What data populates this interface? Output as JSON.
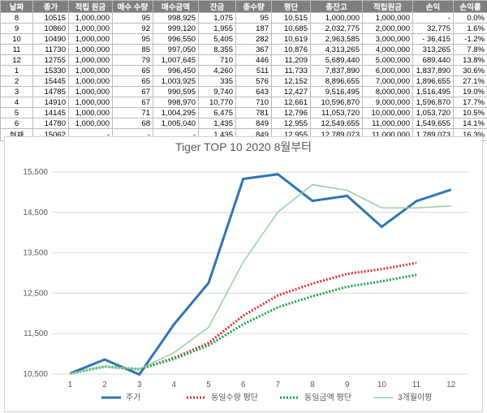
{
  "table": {
    "header": [
      "날짜",
      "종가",
      "적립 원금",
      "매수 수량",
      "매수금액",
      "잔금",
      "총수량",
      "평단",
      "총잔고",
      "적립원금",
      "손익",
      "손익률"
    ],
    "rows": [
      [
        "8",
        "10515",
        "1,000,000",
        "95",
        "998,925",
        "1,075",
        "95",
        "10,515",
        "1,000,000",
        "1,000,000",
        "-",
        "0.0%"
      ],
      [
        "9",
        "10860",
        "1,000,000",
        "92",
        "999,120",
        "1,955",
        "187",
        "10,685",
        "2,032,775",
        "2,000,000",
        "32,775",
        "1.6%"
      ],
      [
        "10",
        "10490",
        "1,000,000",
        "95",
        "996,550",
        "5,405",
        "282",
        "10,619",
        "2,963,585",
        "3,000,000",
        "- 36,415",
        "-1.2%"
      ],
      [
        "11",
        "11730",
        "1,000,000",
        "85",
        "997,050",
        "8,355",
        "367",
        "10,876",
        "4,313,265",
        "4,000,000",
        "313,265",
        "7.8%"
      ],
      [
        "12",
        "12755",
        "1,000,000",
        "79",
        "1,007,645",
        "710",
        "446",
        "11,209",
        "5,689,440",
        "5,000,000",
        "689,440",
        "13.8%"
      ],
      [
        "1",
        "15330",
        "1,000,000",
        "65",
        "996,450",
        "4,260",
        "511",
        "11,733",
        "7,837,890",
        "6,000,000",
        "1,837,890",
        "30.6%"
      ],
      [
        "2",
        "15445",
        "1,000,000",
        "65",
        "1,003,925",
        "335",
        "576",
        "12,152",
        "8,896,655",
        "7,000,000",
        "1,896,655",
        "27.1%"
      ],
      [
        "3",
        "14785",
        "1,000,000",
        "67",
        "990,595",
        "9,740",
        "643",
        "12,427",
        "9,516,495",
        "8,000,000",
        "1,516,495",
        "19.0%"
      ],
      [
        "4",
        "14910",
        "1,000,000",
        "67",
        "998,970",
        "10,770",
        "710",
        "12,661",
        "10,596,870",
        "9,000,000",
        "1,596,870",
        "17.7%"
      ],
      [
        "5",
        "14145",
        "1,000,000",
        "71",
        "1,004,295",
        "6,475",
        "781",
        "12,796",
        "11,053,720",
        "10,000,000",
        "1,053,720",
        "10.5%"
      ],
      [
        "6",
        "14780",
        "1,000,000",
        "68",
        "1,005,040",
        "1,435",
        "849",
        "12,955",
        "12,549,655",
        "11,000,000",
        "1,549,655",
        "14.1%"
      ],
      [
        "현재",
        "15062",
        "-",
        "-",
        "-",
        "1,435",
        "849",
        "12,955",
        "12,789,073",
        "11,000,000",
        "1,789,073",
        "16.3%"
      ]
    ]
  },
  "chart_data": {
    "type": "line",
    "title": "Tiger TOP 10 2020 8월부터",
    "x": [
      1,
      2,
      3,
      4,
      5,
      6,
      7,
      8,
      9,
      10,
      11,
      12
    ],
    "xlim": [
      0.5,
      12.5
    ],
    "xticks": [
      1,
      2,
      3,
      4,
      5,
      6,
      7,
      8,
      9,
      10,
      11,
      12
    ],
    "ylim": [
      10500,
      15500
    ],
    "yticks": [
      {
        "value": 10500,
        "label": "10,500"
      },
      {
        "value": 11500,
        "label": "11,500"
      },
      {
        "value": 12500,
        "label": "12,500"
      },
      {
        "value": 13500,
        "label": "13,500"
      },
      {
        "value": 14500,
        "label": "14,500"
      },
      {
        "value": 15500,
        "label": "15,500"
      }
    ],
    "grid": true,
    "legend": "bottom",
    "series": [
      {
        "name": "주가",
        "color": "#2e75b6",
        "style": "solid",
        "width": 3,
        "values": [
          10515,
          10860,
          10490,
          11730,
          12755,
          15330,
          15445,
          14785,
          14910,
          14145,
          14780,
          15062
        ]
      },
      {
        "name": "동일수량 평단",
        "color": "#e03030",
        "style": "dotted",
        "width": 3,
        "values": [
          10515,
          10688,
          10622,
          10899,
          11270,
          11947,
          12446,
          12739,
          12980,
          13097,
          13250,
          null
        ]
      },
      {
        "name": "동일금액 평단",
        "color": "#1aa34a",
        "style": "dotted",
        "width": 3,
        "values": [
          10515,
          10685,
          10619,
          10876,
          11209,
          11733,
          12152,
          12427,
          12661,
          12796,
          12955,
          null
        ]
      },
      {
        "name": "3개월이평",
        "color": "#8fd19e",
        "style": "solid",
        "width": 1.5,
        "values": [
          10515,
          10688,
          10622,
          11027,
          11658,
          13272,
          14510,
          15187,
          15047,
          14613,
          14612,
          14662
        ]
      }
    ]
  }
}
